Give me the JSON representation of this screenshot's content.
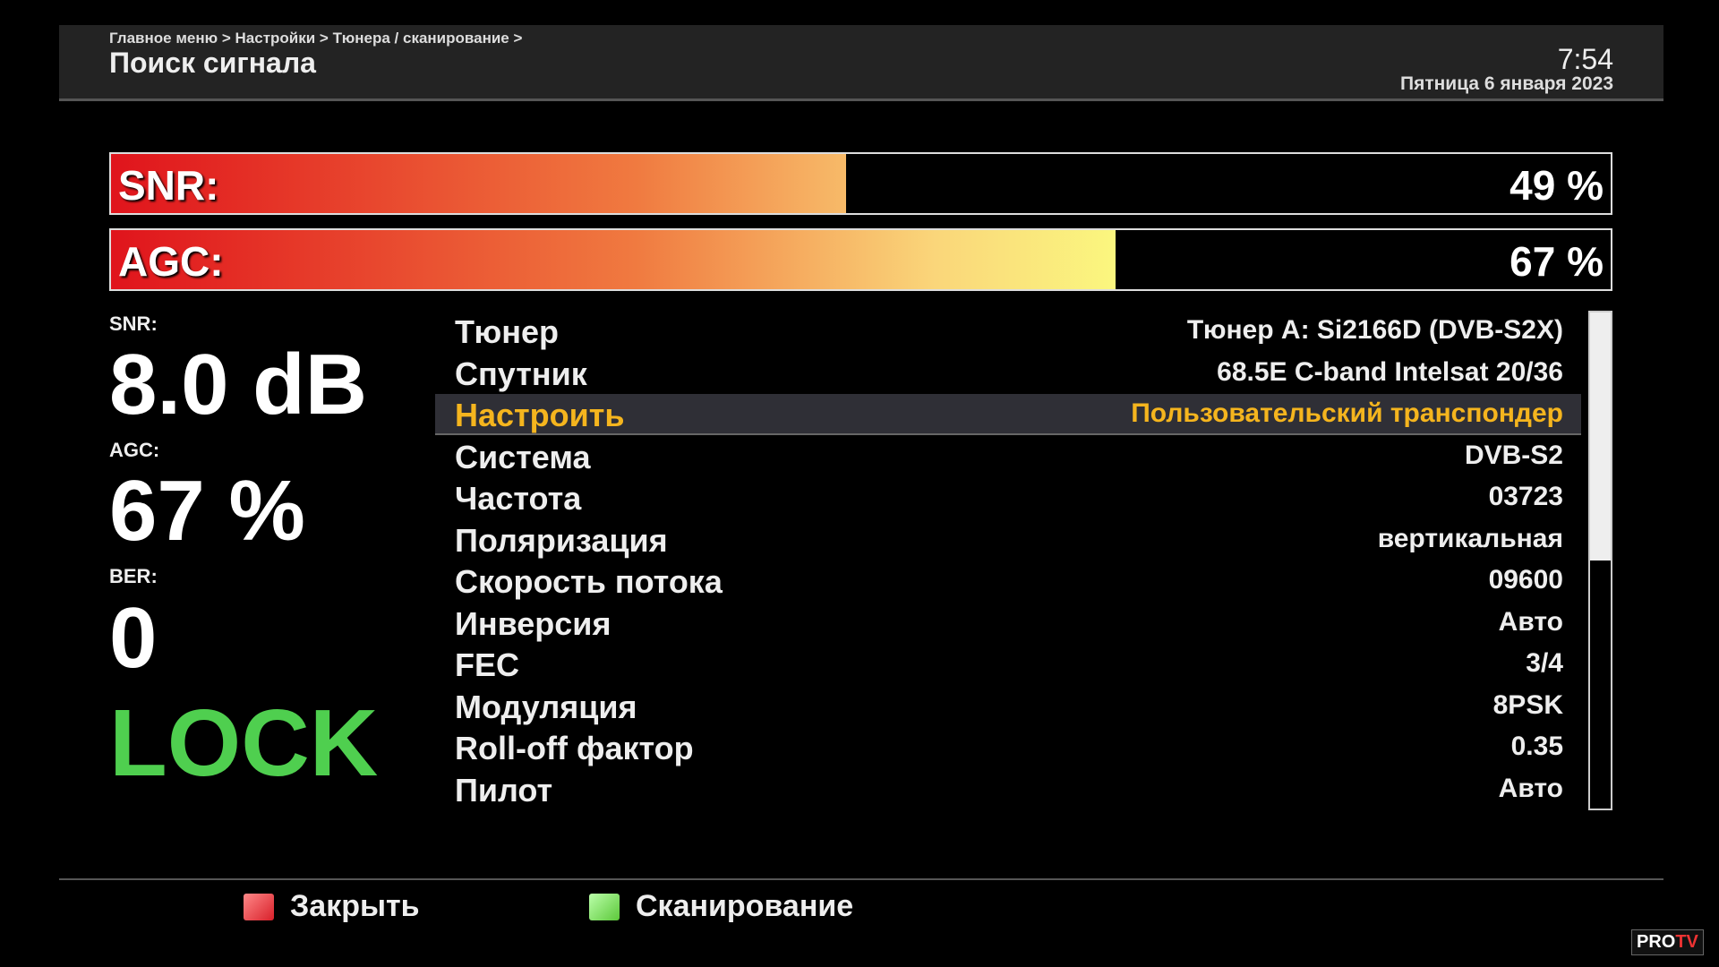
{
  "header": {
    "breadcrumb": "Главное меню > Настройки > Тюнера / сканирование >",
    "title": "Поиск сигнала",
    "time": "7:54",
    "date": "Пятница  6 января 2023"
  },
  "bars": {
    "snr": {
      "label": "SNR:",
      "value_text": "49 %",
      "percent": 49
    },
    "agc": {
      "label": "AGC:",
      "value_text": "67 %",
      "percent": 67
    }
  },
  "stats": {
    "snr_label": "SNR:",
    "snr_value": "8.0 dB",
    "agc_label": "AGC:",
    "agc_value": "67 %",
    "ber_label": "BER:",
    "ber_value": "0",
    "status": "LOCK",
    "status_color": "#4fcf4f"
  },
  "rows": [
    {
      "key": "Тюнер",
      "value": "Тюнер A: Si2166D (DVB-S2X)"
    },
    {
      "key": "Спутник",
      "value": "68.5E C-band Intelsat 20/36"
    },
    {
      "key": "Настроить",
      "value": "Пользовательский транспондер"
    },
    {
      "key": "Система",
      "value": "DVB-S2"
    },
    {
      "key": "Частота",
      "value": "03723"
    },
    {
      "key": "Поляризация",
      "value": "вертикальная"
    },
    {
      "key": "Скорость потока",
      "value": "09600"
    },
    {
      "key": "Инверсия",
      "value": "Авто"
    },
    {
      "key": "FEC",
      "value": "3/4"
    },
    {
      "key": "Модуляция",
      "value": "8PSK"
    },
    {
      "key": "Roll-off фактор",
      "value": "0.35"
    },
    {
      "key": "Пилот",
      "value": "Авто"
    }
  ],
  "selected_row": 2,
  "scroll": {
    "visible_fraction": 0.5
  },
  "footer": {
    "close_label": "Закрыть",
    "close_color": "#d8202a",
    "scan_label": "Сканирование",
    "scan_color": "#5cc83a"
  },
  "watermark": "PROTV"
}
